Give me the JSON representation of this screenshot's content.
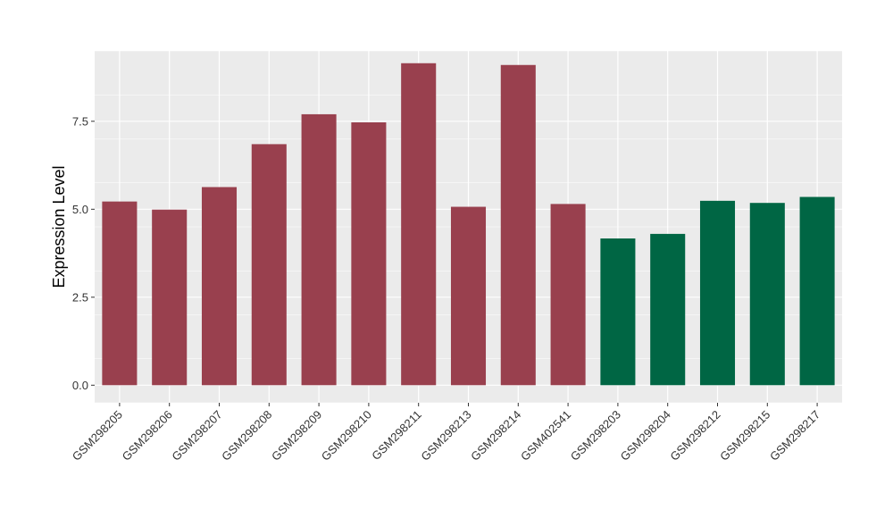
{
  "chart_data": {
    "type": "bar",
    "title": "",
    "xlabel": "",
    "ylabel": "Expression Level",
    "ylim": [
      -0.5,
      9.5
    ],
    "yticks": [
      0.0,
      2.5,
      5.0,
      7.5
    ],
    "ytick_labels": [
      "0.0",
      "2.5",
      "5.0",
      "7.5"
    ],
    "grid": true,
    "legend": "none",
    "categories": [
      "GSM298205",
      "GSM298206",
      "GSM298207",
      "GSM298208",
      "GSM298209",
      "GSM298210",
      "GSM298211",
      "GSM298213",
      "GSM298214",
      "GSM402541",
      "GSM298203",
      "GSM298204",
      "GSM298212",
      "GSM298215",
      "GSM298217"
    ],
    "values": [
      5.22,
      4.99,
      5.63,
      6.85,
      7.7,
      7.47,
      9.15,
      5.07,
      9.1,
      5.15,
      4.17,
      4.3,
      5.24,
      5.18,
      5.35
    ],
    "groups": [
      0,
      0,
      0,
      0,
      0,
      0,
      0,
      0,
      0,
      0,
      1,
      1,
      1,
      1,
      1
    ],
    "group_colors": [
      "#99404e",
      "#006644"
    ],
    "panel_color": "#ebebeb",
    "grid_color": "#ffffff"
  }
}
